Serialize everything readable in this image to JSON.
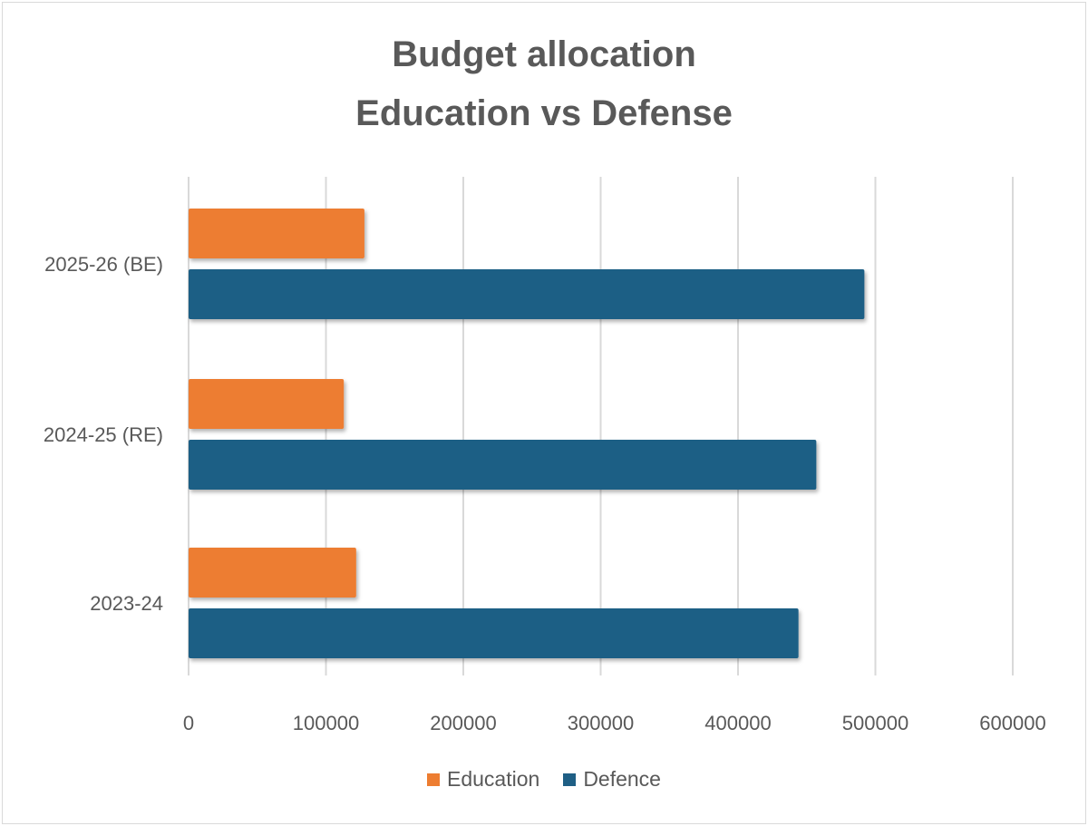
{
  "chart_data": {
    "type": "bar",
    "orientation": "horizontal",
    "title": [
      "Budget allocation",
      "Education vs Defense"
    ],
    "categories": [
      "2025-26 (BE)",
      "2024-25 (RE)",
      "2023-24"
    ],
    "series": [
      {
        "name": "Education",
        "color": "#ED7D31",
        "values": [
          128000,
          113000,
          122000
        ]
      },
      {
        "name": "Defence",
        "color": "#1F5F85",
        "values": [
          492000,
          457000,
          444000
        ]
      }
    ],
    "xlim": [
      0,
      600000
    ],
    "xticks": [
      "0",
      "100000",
      "200000",
      "300000",
      "400000",
      "500000",
      "600000"
    ],
    "xlabel": "",
    "ylabel": "",
    "grid": true,
    "legend": "bottom"
  }
}
